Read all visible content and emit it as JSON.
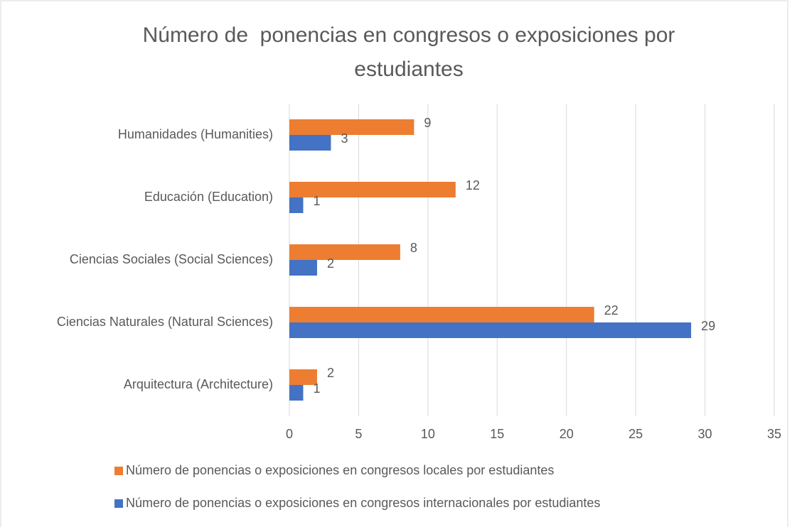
{
  "chart_data": {
    "type": "hbar",
    "title": "Número de  ponencias en congresos o exposiciones por estudiantes",
    "categories": [
      "Humanidades (Humanities)",
      "Educación (Education)",
      "Ciencias Sociales (Social Sciences)",
      "Ciencias Naturales (Natural Sciences)",
      "Arquitectura (Architecture)"
    ],
    "series": [
      {
        "name": "Número de ponencias o exposiciones en congresos locales por estudiantes",
        "color": "#ed7d31",
        "values": [
          9,
          12,
          8,
          22,
          2
        ]
      },
      {
        "name": "Número de ponencias o exposiciones en congresos internacionales por estudiantes",
        "color": "#4472c4",
        "values": [
          3,
          1,
          2,
          29,
          1
        ]
      }
    ],
    "xlim": [
      0,
      35
    ],
    "xticks": [
      0,
      5,
      10,
      15,
      20,
      25,
      30,
      35
    ],
    "grid": true,
    "legend": "bottom"
  }
}
